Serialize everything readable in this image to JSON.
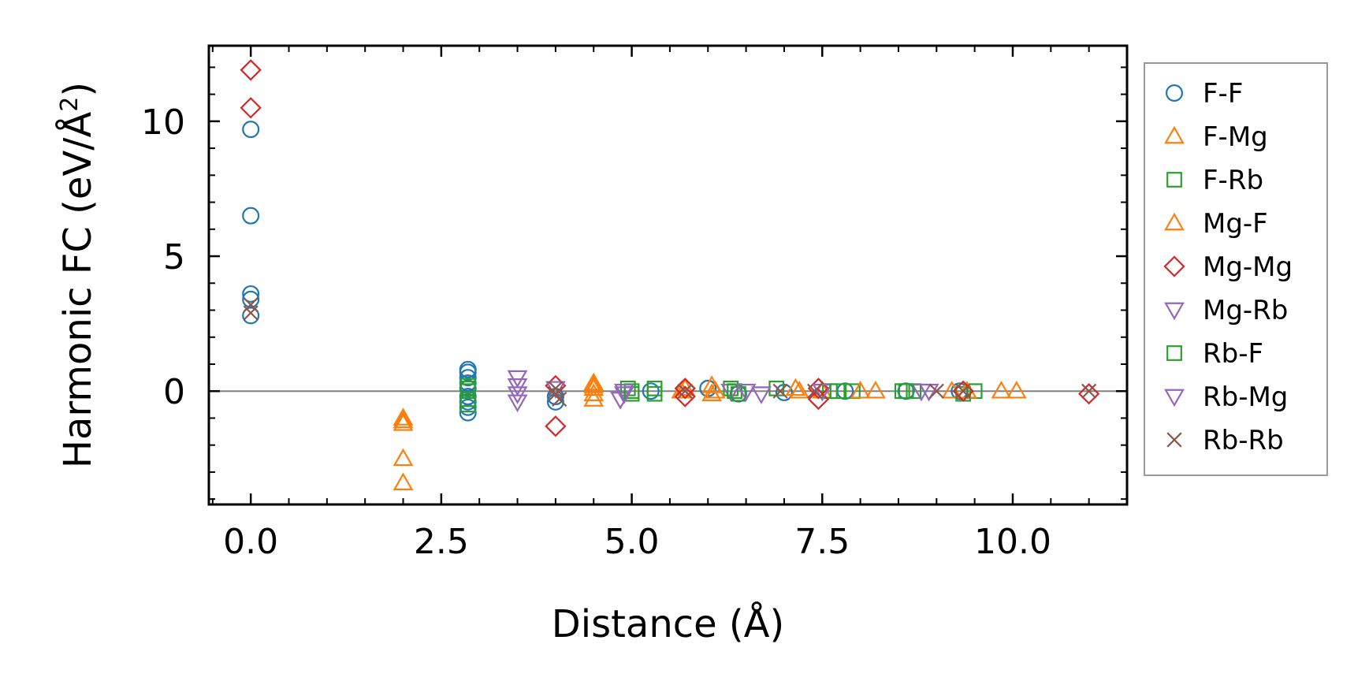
{
  "chart_data": {
    "type": "scatter",
    "title": "",
    "xlabel": "Distance (Å)",
    "ylabel": "Harmonic FC (eV/Å²)",
    "ylabel_parts": {
      "prefix": "Harmonic FC (eV/Å",
      "sup": "2",
      "suffix": ")"
    },
    "xlim": [
      -0.55,
      11.5
    ],
    "ylim": [
      -4.2,
      12.8
    ],
    "xticks": [
      0.0,
      2.5,
      5.0,
      7.5,
      10.0
    ],
    "xtick_labels": [
      "0.0",
      "2.5",
      "5.0",
      "7.5",
      "10.0"
    ],
    "yticks": [
      0,
      5,
      10
    ],
    "ytick_labels": [
      "0",
      "5",
      "10"
    ],
    "zero_line": true,
    "grid": false,
    "legend_position": "outside-right",
    "series": [
      {
        "name": "F-F",
        "marker": "circle",
        "color": "#1f77b4",
        "points": [
          [
            0,
            9.7
          ],
          [
            0,
            6.5
          ],
          [
            0,
            3.6
          ],
          [
            0,
            3.4
          ],
          [
            0,
            2.8
          ],
          [
            2.85,
            0.8
          ],
          [
            2.85,
            0.7
          ],
          [
            2.85,
            0.5
          ],
          [
            2.85,
            0.3
          ],
          [
            2.85,
            0.1
          ],
          [
            2.85,
            -0.2
          ],
          [
            2.85,
            -0.4
          ],
          [
            2.85,
            -0.6
          ],
          [
            2.85,
            -0.8
          ],
          [
            4.0,
            -0.2
          ],
          [
            4.0,
            -0.4
          ],
          [
            5.25,
            0.0
          ],
          [
            6.0,
            0.1
          ],
          [
            6.4,
            -0.1
          ],
          [
            7.0,
            -0.05
          ],
          [
            7.8,
            0.0
          ],
          [
            8.6,
            0.0
          ],
          [
            9.3,
            0.0
          ]
        ]
      },
      {
        "name": "F-Mg",
        "marker": "triangle-up",
        "color": "#ff7f0e",
        "points": [
          [
            2.0,
            -1.1
          ],
          [
            2.0,
            -1.2
          ],
          [
            2.0,
            -2.5
          ],
          [
            2.0,
            -3.4
          ],
          [
            4.5,
            0.3
          ],
          [
            4.5,
            0.1
          ],
          [
            4.5,
            -0.1
          ],
          [
            4.5,
            -0.3
          ],
          [
            5.65,
            0.0
          ],
          [
            6.05,
            0.2
          ],
          [
            6.05,
            -0.1
          ],
          [
            7.15,
            0.1
          ],
          [
            7.5,
            0.0
          ],
          [
            8.2,
            0.0
          ],
          [
            9.2,
            0.0
          ],
          [
            9.85,
            0.0
          ],
          [
            10.05,
            0.0
          ]
        ]
      },
      {
        "name": "F-Rb",
        "marker": "square",
        "color": "#2ca02c",
        "points": [
          [
            2.85,
            0.2
          ],
          [
            2.85,
            0.0
          ],
          [
            2.85,
            -0.3
          ],
          [
            2.85,
            -0.5
          ],
          [
            4.95,
            0.1
          ],
          [
            5.0,
            0.0
          ],
          [
            5.3,
            0.1
          ],
          [
            5.3,
            -0.1
          ],
          [
            6.3,
            0.1
          ],
          [
            6.4,
            -0.1
          ],
          [
            6.9,
            0.1
          ],
          [
            7.6,
            0.0
          ],
          [
            7.9,
            0.0
          ],
          [
            8.55,
            0.0
          ],
          [
            8.7,
            0.0
          ],
          [
            9.35,
            -0.1
          ],
          [
            9.5,
            0.0
          ]
        ]
      },
      {
        "name": "Mg-F",
        "marker": "triangle-up",
        "color": "#ff7f0e",
        "points": [
          [
            2.0,
            -1.0
          ],
          [
            4.5,
            0.2
          ],
          [
            5.7,
            0.1
          ],
          [
            6.1,
            0.0
          ],
          [
            7.2,
            0.0
          ],
          [
            8.0,
            0.0
          ],
          [
            9.4,
            0.0
          ]
        ]
      },
      {
        "name": "Mg-Mg",
        "marker": "diamond",
        "color": "#d62728",
        "points": [
          [
            0,
            11.9
          ],
          [
            0,
            10.5
          ],
          [
            4.0,
            0.2
          ],
          [
            4.0,
            -1.3
          ],
          [
            5.7,
            0.1
          ],
          [
            5.7,
            -0.2
          ],
          [
            7.45,
            0.1
          ],
          [
            7.45,
            -0.3
          ],
          [
            9.35,
            0.0
          ],
          [
            11.0,
            -0.1
          ]
        ]
      },
      {
        "name": "Mg-Rb",
        "marker": "triangle-down",
        "color": "#9467bd",
        "points": [
          [
            3.5,
            0.5
          ],
          [
            3.5,
            -0.1
          ],
          [
            3.5,
            -0.4
          ],
          [
            4.0,
            0.1
          ],
          [
            4.85,
            -0.3
          ],
          [
            4.9,
            0.0
          ],
          [
            6.3,
            0.0
          ],
          [
            6.7,
            -0.1
          ],
          [
            7.5,
            0.0
          ],
          [
            8.8,
            0.0
          ]
        ]
      },
      {
        "name": "Rb-F",
        "marker": "square",
        "color": "#2ca02c",
        "points": [
          [
            2.85,
            0.1
          ],
          [
            5.0,
            -0.1
          ],
          [
            6.35,
            0.0
          ],
          [
            7.7,
            0.0
          ],
          [
            8.6,
            0.0
          ]
        ]
      },
      {
        "name": "Rb-Mg",
        "marker": "triangle-down",
        "color": "#9467bd",
        "points": [
          [
            3.5,
            0.2
          ],
          [
            4.9,
            -0.1
          ],
          [
            6.5,
            0.0
          ],
          [
            8.9,
            0.0
          ]
        ]
      },
      {
        "name": "Rb-Rb",
        "marker": "x",
        "color": "#8c564b",
        "points": [
          [
            0,
            3.2
          ],
          [
            0,
            2.9
          ],
          [
            4.0,
            0.1
          ],
          [
            4.0,
            -0.1
          ],
          [
            4.05,
            -0.3
          ],
          [
            5.7,
            0.0
          ],
          [
            6.95,
            0.0
          ],
          [
            7.4,
            0.0
          ],
          [
            9.0,
            0.0
          ],
          [
            9.35,
            0.0
          ],
          [
            11.0,
            0.0
          ]
        ]
      }
    ]
  }
}
